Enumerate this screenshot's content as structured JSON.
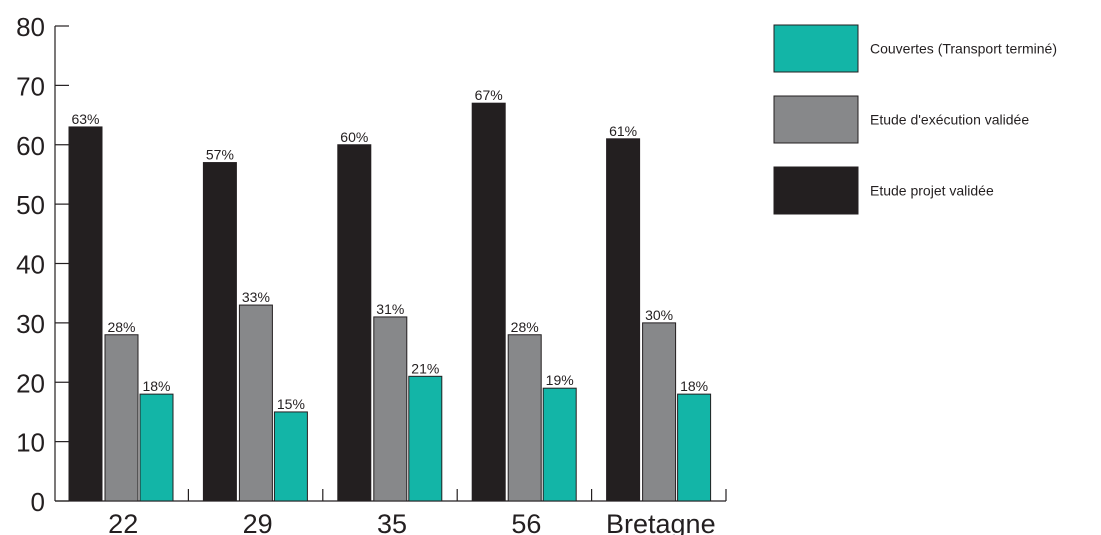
{
  "chart_data": {
    "type": "bar",
    "categories": [
      "22",
      "29",
      "35",
      "56",
      "Bretagne"
    ],
    "series": [
      {
        "name": "Etude projet validée",
        "color": "#231f20",
        "values": [
          63,
          57,
          60,
          67,
          61
        ],
        "labels": [
          "63%",
          "57%",
          "60%",
          "67%",
          "61%"
        ]
      },
      {
        "name": "Etude d'exécution validée",
        "color": "#87888a",
        "values": [
          28,
          33,
          31,
          28,
          30
        ],
        "labels": [
          "28%",
          "33%",
          "31%",
          "28%",
          "30%"
        ]
      },
      {
        "name": "Couvertes (Transport terminé)",
        "color": "#13b5a7",
        "values": [
          18,
          15,
          21,
          19,
          18
        ],
        "labels": [
          "18%",
          "15%",
          "21%",
          "19%",
          "18%"
        ]
      }
    ],
    "legend_order": [
      2,
      1,
      0
    ],
    "ylim": [
      0,
      80
    ],
    "yticks": [
      "0",
      "10",
      "20",
      "30",
      "40",
      "50",
      "60",
      "70",
      "80"
    ],
    "legend_position": "top-right",
    "grid": false,
    "title": "",
    "xlabel": "",
    "ylabel": ""
  }
}
